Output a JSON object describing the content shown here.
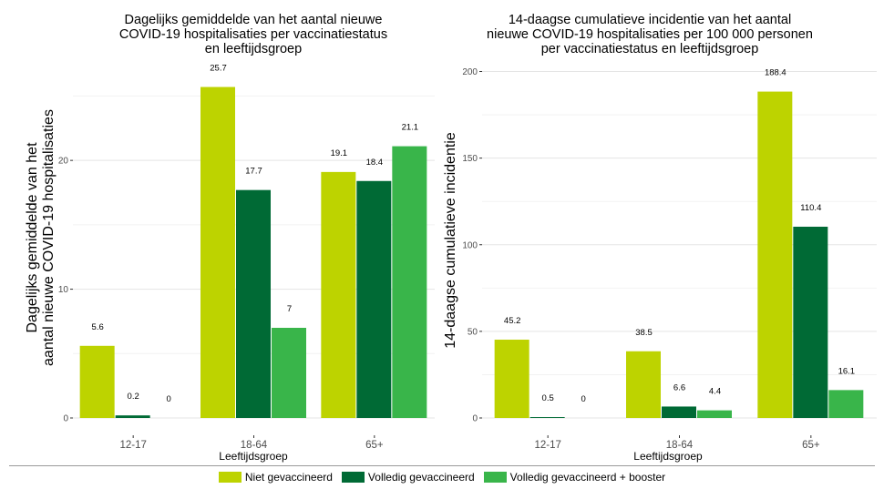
{
  "colors": {
    "niet": "#bdd300",
    "volledig": "#006a35",
    "booster": "#39b54a",
    "grid": "#e5e5e5",
    "axis_text": "#4d4d4d"
  },
  "legend": [
    "Niet gevaccineerd",
    "Volledig gevaccineerd",
    "Volledig gevaccineerd + booster"
  ],
  "chart_data": [
    {
      "type": "bar",
      "title": [
        "Dagelijks gemiddelde van het aantal nieuwe",
        "COVID-19 hospitalisaties per vaccinatiestatus",
        "en leeftijdsgroep"
      ],
      "ylabel": [
        "Dagelijks gemiddelde van het",
        "aantal nieuwe COVID-19 hospitalisaties"
      ],
      "xlabel": "Leeftijdsgroep",
      "categories": [
        "12-17",
        "18-64",
        "65+"
      ],
      "ylim": [
        0,
        28
      ],
      "yticks": [
        0,
        10,
        20
      ],
      "series": [
        {
          "name": "Niet gevaccineerd",
          "values": [
            5.6,
            25.7,
            19.1
          ],
          "labels": [
            "5.6",
            "25.7",
            "19.1"
          ]
        },
        {
          "name": "Volledig gevaccineerd",
          "values": [
            0.2,
            17.7,
            18.4
          ],
          "labels": [
            "0.2",
            "17.7",
            "18.4"
          ]
        },
        {
          "name": "Volledig gevaccineerd + booster",
          "values": [
            0,
            7,
            21.1
          ],
          "labels": [
            "0",
            "7",
            "21.1"
          ]
        }
      ]
    },
    {
      "type": "bar",
      "title": [
        "14-daagse cumulatieve incidentie van het aantal",
        "nieuwe COVID-19 hospitalisaties per 100 000 personen",
        "per vaccinatiestatus en leeftijdsgroep"
      ],
      "ylabel": [
        "14-daagse cumulatieve incidentie"
      ],
      "xlabel": "Leeftijdsgroep",
      "categories": [
        "12-17",
        "18-64",
        "65+"
      ],
      "ylim": [
        0,
        205
      ],
      "yticks": [
        0,
        50,
        100,
        150,
        200
      ],
      "series": [
        {
          "name": "Niet gevaccineerd",
          "values": [
            45.2,
            38.5,
            188.4
          ],
          "labels": [
            "45.2",
            "38.5",
            "188.4"
          ]
        },
        {
          "name": "Volledig gevaccineerd",
          "values": [
            0.5,
            6.6,
            110.4
          ],
          "labels": [
            "0.5",
            "6.6",
            "110.4"
          ]
        },
        {
          "name": "Volledig gevaccineerd + booster",
          "values": [
            0,
            4.4,
            16.1
          ],
          "labels": [
            "0",
            "4.4",
            "16.1"
          ]
        }
      ]
    }
  ]
}
